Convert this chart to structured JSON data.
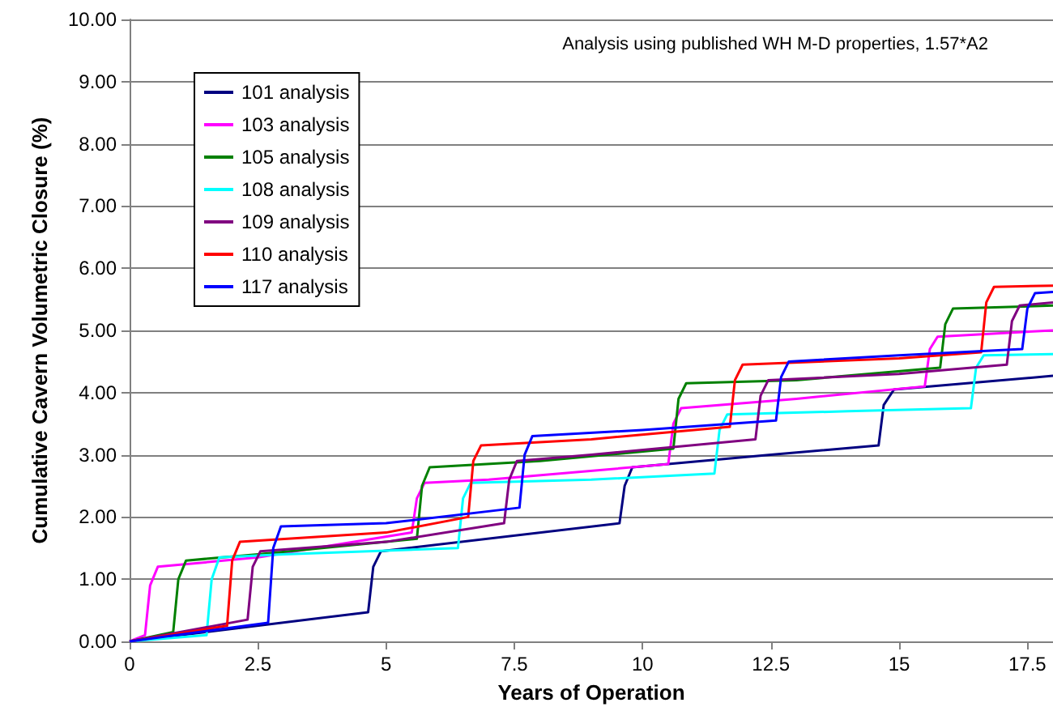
{
  "chart_data": {
    "type": "line",
    "xlabel": "Years of Operation",
    "ylabel": "Cumulative Cavern Volumetric Closure (%)",
    "annotations": [
      "Analysis using published WH M-D properties, 1.57*A2"
    ],
    "xlim": [
      0,
      18
    ],
    "xticks": [
      0,
      2.5,
      5,
      7.5,
      10,
      12.5,
      15,
      17.5
    ],
    "ylim": [
      0,
      10
    ],
    "yticks": [
      {
        "value": 0,
        "label": "0.00"
      },
      {
        "value": 1,
        "label": "1.00"
      },
      {
        "value": 2,
        "label": "2.00"
      },
      {
        "value": 3,
        "label": "3.00"
      },
      {
        "value": 4,
        "label": "4.00"
      },
      {
        "value": 5,
        "label": "5.00"
      },
      {
        "value": 6,
        "label": "6.00"
      },
      {
        "value": 7,
        "label": "7.00"
      },
      {
        "value": 8,
        "label": "8.00"
      },
      {
        "value": 9,
        "label": "9.00"
      },
      {
        "value": 10,
        "label": "10.00"
      }
    ],
    "grid": "y",
    "legend": "top left",
    "marker": "none",
    "line_style": "solid",
    "series": [
      {
        "name": "101 analysis",
        "color": "#000080",
        "x": [
          0,
          4.65,
          4.75,
          4.9,
          9.55,
          9.65,
          9.8,
          12.5,
          14.6,
          14.7,
          14.9,
          18
        ],
        "values": [
          0,
          0.47,
          1.2,
          1.45,
          1.9,
          2.5,
          2.8,
          3.0,
          3.15,
          3.8,
          4.05,
          4.27
        ]
      },
      {
        "name": "103 analysis",
        "color": "#ff00ff",
        "x": [
          0,
          0.3,
          0.4,
          0.55,
          2.5,
          5.5,
          5.6,
          5.75,
          7,
          10.5,
          10.6,
          10.75,
          13,
          15.5,
          15.6,
          15.75,
          18
        ],
        "values": [
          0,
          0.1,
          0.9,
          1.2,
          1.35,
          1.75,
          2.3,
          2.55,
          2.6,
          2.85,
          3.5,
          3.75,
          3.9,
          4.1,
          4.7,
          4.9,
          5.0
        ]
      },
      {
        "name": "105 analysis",
        "color": "#008000",
        "x": [
          0,
          0.85,
          0.95,
          1.1,
          2.5,
          5.6,
          5.7,
          5.85,
          8,
          10.6,
          10.7,
          10.85,
          13,
          15.8,
          15.9,
          16.05,
          18
        ],
        "values": [
          0,
          0.15,
          1.0,
          1.3,
          1.4,
          1.65,
          2.5,
          2.8,
          2.9,
          3.1,
          3.9,
          4.15,
          4.2,
          4.4,
          5.1,
          5.35,
          5.4
        ]
      },
      {
        "name": "108 analysis",
        "color": "#00ffff",
        "x": [
          0,
          1.5,
          1.6,
          1.75,
          3,
          6.4,
          6.5,
          6.65,
          9,
          11.4,
          11.5,
          11.65,
          14,
          16.4,
          16.5,
          16.65,
          18
        ],
        "values": [
          0,
          0.1,
          1.0,
          1.35,
          1.4,
          1.5,
          2.3,
          2.55,
          2.6,
          2.7,
          3.4,
          3.65,
          3.7,
          3.75,
          4.4,
          4.6,
          4.62
        ]
      },
      {
        "name": "109 analysis",
        "color": "#800080",
        "x": [
          0,
          2.3,
          2.4,
          2.55,
          5,
          7.3,
          7.4,
          7.55,
          9,
          12.2,
          12.3,
          12.45,
          15,
          17.1,
          17.2,
          17.35,
          18
        ],
        "values": [
          0,
          0.35,
          1.2,
          1.45,
          1.6,
          1.9,
          2.6,
          2.9,
          3.0,
          3.25,
          3.95,
          4.2,
          4.3,
          4.45,
          5.15,
          5.4,
          5.45
        ]
      },
      {
        "name": "110 analysis",
        "color": "#ff0000",
        "x": [
          0,
          1.9,
          2.0,
          2.15,
          5,
          6.6,
          6.7,
          6.85,
          9,
          11.7,
          11.8,
          11.95,
          15,
          16.6,
          16.7,
          16.85,
          18
        ],
        "values": [
          0,
          0.25,
          1.3,
          1.6,
          1.75,
          2.0,
          2.9,
          3.15,
          3.25,
          3.45,
          4.2,
          4.45,
          4.55,
          4.65,
          5.45,
          5.7,
          5.72
        ]
      },
      {
        "name": "117 analysis",
        "color": "#0000ff",
        "x": [
          0,
          2.7,
          2.8,
          2.95,
          5,
          7.6,
          7.7,
          7.85,
          10,
          12.6,
          12.7,
          12.85,
          15,
          17.4,
          17.5,
          17.65,
          18
        ],
        "values": [
          0,
          0.3,
          1.5,
          1.85,
          1.9,
          2.15,
          3.0,
          3.3,
          3.4,
          3.55,
          4.25,
          4.5,
          4.6,
          4.7,
          5.35,
          5.6,
          5.62
        ]
      }
    ]
  }
}
